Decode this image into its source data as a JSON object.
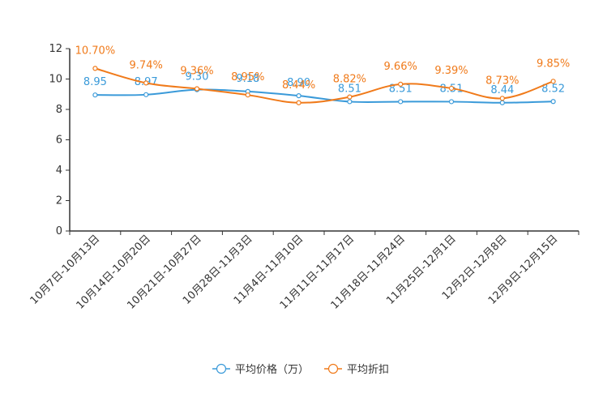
{
  "chart_data": {
    "type": "line",
    "categories": [
      "10月7日-10月13日",
      "10月14日-10月20日",
      "10月21日-10月27日",
      "10月28日-11月3日",
      "11月4日-11月10日",
      "11月11日-11月17日",
      "11月18日-11月24日",
      "11月25日-12月1日",
      "12月2日-12月8日",
      "12月9日-12月15日"
    ],
    "ylim": [
      0,
      12
    ],
    "yticks": [
      0,
      2,
      4,
      6,
      8,
      10,
      12
    ],
    "series": [
      {
        "name": "平均价格（万）",
        "color": "#3a9ad9",
        "values": [
          8.95,
          8.97,
          9.3,
          9.18,
          8.9,
          8.51,
          8.51,
          8.51,
          8.44,
          8.52
        ],
        "labels": [
          "8.95",
          "8.97",
          "9.30",
          "9.18",
          "8.90",
          "8.51",
          "8.51",
          "8.51",
          "8.44",
          "8.52"
        ]
      },
      {
        "name": "平均折扣",
        "color": "#f07a1a",
        "values": [
          10.7,
          9.74,
          9.36,
          8.95,
          8.44,
          8.82,
          9.66,
          9.39,
          8.73,
          9.85
        ],
        "labels": [
          "10.70%",
          "9.74%",
          "9.36%",
          "8.95%",
          "8.44%",
          "8.82%",
          "9.66%",
          "9.39%",
          "8.73%",
          "9.85%"
        ]
      }
    ],
    "xlabel": "",
    "ylabel": "",
    "legend_position": "bottom-center"
  }
}
